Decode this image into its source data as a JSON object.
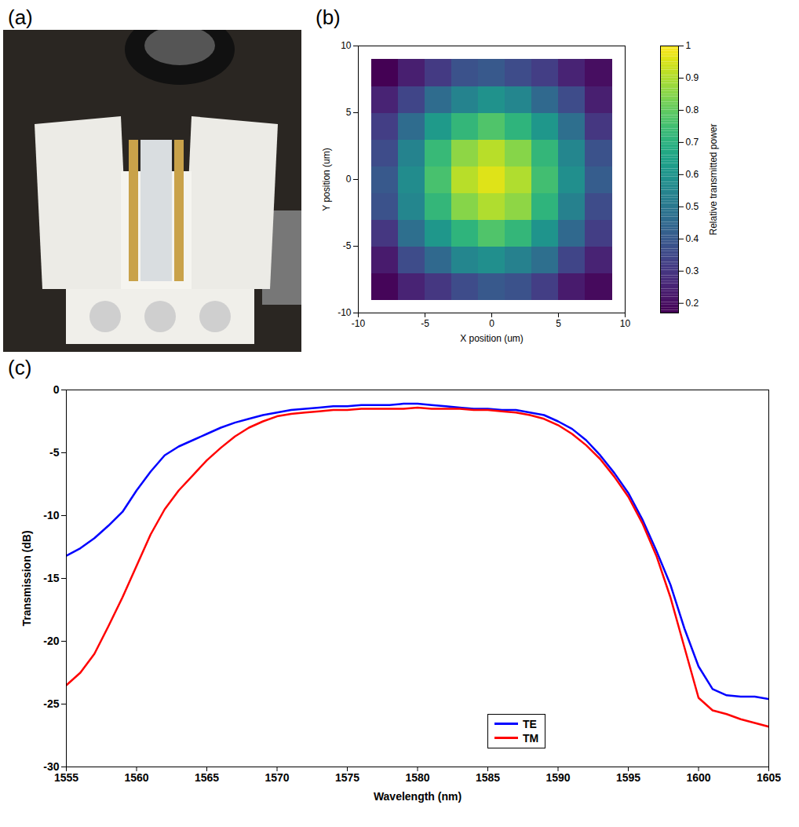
{
  "chart_data": [
    {
      "type": "image",
      "panel": "(a)"
    },
    {
      "type": "heatmap",
      "panel": "(b)",
      "xlabel": "X position (um)",
      "ylabel": "Y position (um)",
      "x": [
        -8,
        -6,
        -4,
        -2,
        0,
        2,
        4,
        6,
        8
      ],
      "y": [
        -8,
        -6,
        -4,
        -2,
        0,
        2,
        4,
        6,
        8
      ],
      "z": [
        [
          0.18,
          0.25,
          0.3,
          0.36,
          0.4,
          0.38,
          0.32,
          0.23,
          0.19
        ],
        [
          0.23,
          0.36,
          0.45,
          0.55,
          0.58,
          0.53,
          0.47,
          0.34,
          0.25
        ],
        [
          0.3,
          0.47,
          0.61,
          0.71,
          0.77,
          0.72,
          0.6,
          0.45,
          0.32
        ],
        [
          0.38,
          0.55,
          0.72,
          0.85,
          0.9,
          0.86,
          0.71,
          0.53,
          0.36
        ],
        [
          0.4,
          0.57,
          0.76,
          0.91,
          0.96,
          0.9,
          0.75,
          0.58,
          0.41
        ],
        [
          0.36,
          0.54,
          0.73,
          0.86,
          0.91,
          0.85,
          0.72,
          0.55,
          0.38
        ],
        [
          0.32,
          0.46,
          0.62,
          0.72,
          0.77,
          0.71,
          0.61,
          0.47,
          0.3
        ],
        [
          0.25,
          0.34,
          0.46,
          0.54,
          0.59,
          0.55,
          0.45,
          0.36,
          0.24
        ],
        [
          0.17,
          0.24,
          0.31,
          0.38,
          0.4,
          0.36,
          0.32,
          0.25,
          0.2
        ]
      ],
      "xlim": [
        -10,
        10
      ],
      "xticks": [
        -10,
        -5,
        0,
        5,
        10
      ],
      "ylim": [
        -10,
        10
      ],
      "yticks": [
        -10,
        -5,
        0,
        5,
        10
      ],
      "colorbar": {
        "label": "Relative transmitted power",
        "range": [
          0.17,
          1
        ],
        "ticks": [
          0.2,
          0.3,
          0.4,
          0.5,
          0.6,
          0.7,
          0.8,
          0.9,
          1
        ]
      },
      "grid": false
    },
    {
      "type": "line",
      "panel": "(c)",
      "xlabel": "Wavelength (nm)",
      "ylabel": "Transmission (dB)",
      "x": [
        1555,
        1556,
        1557,
        1558,
        1559,
        1560,
        1561,
        1562,
        1563,
        1564,
        1565,
        1566,
        1567,
        1568,
        1569,
        1570,
        1571,
        1572,
        1573,
        1574,
        1575,
        1576,
        1577,
        1578,
        1579,
        1580,
        1581,
        1582,
        1583,
        1584,
        1585,
        1586,
        1587,
        1588,
        1589,
        1590,
        1591,
        1592,
        1593,
        1594,
        1595,
        1596,
        1597,
        1598,
        1599,
        1600,
        1601,
        1602,
        1603,
        1604,
        1605
      ],
      "series": [
        {
          "name": "TE",
          "color": "#0000ff",
          "values": [
            -13.2,
            -12.6,
            -11.8,
            -10.8,
            -9.7,
            -8.0,
            -6.5,
            -5.2,
            -4.5,
            -4.0,
            -3.5,
            -3.0,
            -2.6,
            -2.3,
            -2.0,
            -1.8,
            -1.6,
            -1.5,
            -1.4,
            -1.3,
            -1.3,
            -1.2,
            -1.2,
            -1.2,
            -1.1,
            -1.1,
            -1.2,
            -1.3,
            -1.4,
            -1.5,
            -1.5,
            -1.6,
            -1.6,
            -1.8,
            -2.0,
            -2.5,
            -3.1,
            -4.0,
            -5.2,
            -6.6,
            -8.2,
            -10.3,
            -12.8,
            -15.5,
            -19.0,
            -22.0,
            -23.8,
            -24.3,
            -24.4,
            -24.4,
            -24.6
          ]
        },
        {
          "name": "TM",
          "color": "#ff0000",
          "values": [
            -23.5,
            -22.5,
            -21.0,
            -18.8,
            -16.5,
            -14.0,
            -11.5,
            -9.5,
            -8.0,
            -6.8,
            -5.6,
            -4.6,
            -3.7,
            -3.0,
            -2.5,
            -2.1,
            -1.9,
            -1.8,
            -1.7,
            -1.6,
            -1.6,
            -1.5,
            -1.5,
            -1.5,
            -1.5,
            -1.4,
            -1.5,
            -1.5,
            -1.5,
            -1.6,
            -1.6,
            -1.7,
            -1.8,
            -2.0,
            -2.3,
            -2.8,
            -3.5,
            -4.4,
            -5.5,
            -6.9,
            -8.5,
            -10.6,
            -13.2,
            -16.5,
            -20.5,
            -24.5,
            -25.5,
            -25.8,
            -26.2,
            -26.5,
            -26.8
          ]
        }
      ],
      "xlim": [
        1555,
        1605
      ],
      "xticks": [
        1555,
        1560,
        1565,
        1570,
        1575,
        1580,
        1585,
        1590,
        1595,
        1600,
        1605
      ],
      "ylim": [
        -30,
        0
      ],
      "yticks": [
        -30,
        -25,
        -20,
        -15,
        -10,
        -5,
        0
      ],
      "legend": "bottom right",
      "grid": false
    }
  ]
}
